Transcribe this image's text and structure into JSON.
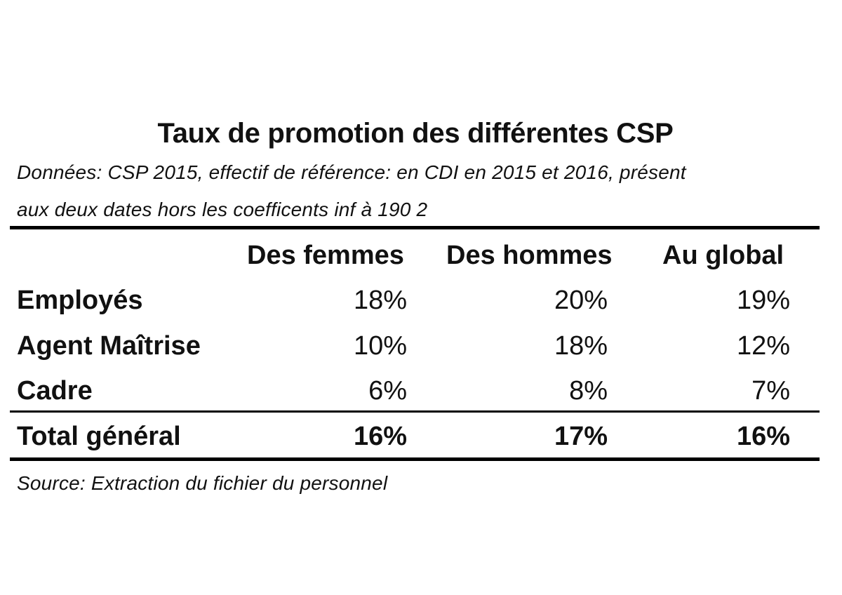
{
  "title": "Taux de promotion des différentes CSP",
  "subtitle": {
    "line1": "Données: CSP 2015, effectif de référence: en CDI en 2015 et 2016, présent",
    "line2": "aux deux dates hors les coefficents inf à 190 2"
  },
  "table": {
    "headers": [
      "Des femmes",
      "Des hommes",
      "Au global"
    ],
    "rows": [
      {
        "label": "Employés",
        "values": [
          "18%",
          "20%",
          "19%"
        ]
      },
      {
        "label": "Agent Maîtrise",
        "values": [
          "10%",
          "18%",
          "12%"
        ]
      },
      {
        "label": "Cadre",
        "values": [
          "6%",
          "8%",
          "7%"
        ]
      }
    ],
    "total": {
      "label": "Total général",
      "values": [
        "16%",
        "17%",
        "16%"
      ]
    }
  },
  "source": "Source: Extraction du fichier du personnel"
}
